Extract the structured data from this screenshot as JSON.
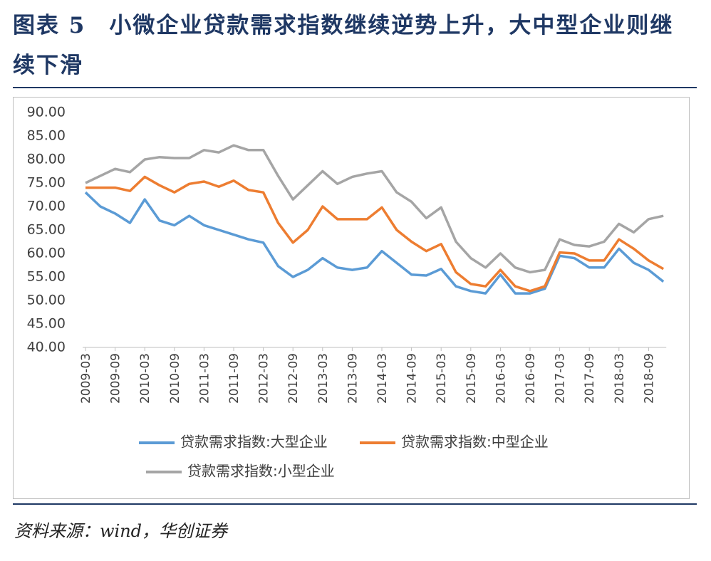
{
  "chart_data": {
    "type": "line",
    "title": "图表 5　小微企业贷款需求指数继续逆势上升，大中型企业则继续下滑",
    "source": "资料来源：wind，华创证券",
    "categories": [
      "2009-03",
      null,
      "2009-09",
      null,
      "2010-03",
      null,
      "2010-09",
      null,
      "2011-03",
      null,
      "2011-09",
      null,
      "2012-03",
      null,
      "2012-09",
      null,
      "2013-03",
      null,
      "2013-09",
      null,
      "2014-03",
      null,
      "2014-09",
      null,
      "2015-03",
      null,
      "2015-09",
      null,
      "2016-03",
      null,
      "2016-09",
      null,
      "2017-03",
      null,
      "2017-09",
      null,
      "2018-03",
      null,
      "2018-09",
      null
    ],
    "series": [
      {
        "name": "贷款需求指数:大型企业",
        "color": "#5b9bd5",
        "values": [
          73,
          70,
          68.5,
          66.5,
          71.5,
          67,
          66,
          68,
          66,
          65,
          64,
          63,
          62.3,
          57.3,
          55,
          56.5,
          59,
          57,
          56.5,
          57,
          60.5,
          58,
          55.5,
          55.3,
          56.7,
          53,
          52,
          51.5,
          55.5,
          51.5,
          51.5,
          52.5,
          59.5,
          59,
          57,
          57,
          61,
          58,
          56.5,
          54
        ]
      },
      {
        "name": "贷款需求指数:中型企业",
        "color": "#ed7d31",
        "values": [
          74,
          74,
          74,
          73.3,
          76.3,
          74.5,
          73,
          74.8,
          75.3,
          74.2,
          75.5,
          73.5,
          73,
          66.5,
          62.3,
          65,
          70,
          67.3,
          67.3,
          67.3,
          69.8,
          65,
          62.5,
          60.5,
          62,
          56,
          53.5,
          53,
          56.5,
          53,
          52,
          53,
          60.2,
          60,
          58.5,
          58.5,
          63,
          61,
          58.5,
          56.7
        ]
      },
      {
        "name": "贷款需求指数:小型企业",
        "color": "#a5a5a5",
        "values": [
          75,
          76.5,
          78,
          77.3,
          80,
          80.5,
          80.3,
          80.3,
          82,
          81.5,
          83,
          82,
          82,
          76.5,
          71.5,
          74.5,
          77.5,
          74.8,
          76.3,
          77,
          77.5,
          73,
          71,
          67.5,
          69.8,
          62.5,
          59,
          57,
          60,
          57,
          56,
          56.5,
          63,
          61.8,
          61.5,
          62.5,
          66.3,
          64.5,
          67.3,
          68
        ]
      }
    ],
    "ylim": [
      40,
      90
    ],
    "yticks": [
      {
        "value": 40,
        "label": "40.00"
      },
      {
        "value": 45,
        "label": "45.00"
      },
      {
        "value": 50,
        "label": "50.00"
      },
      {
        "value": 55,
        "label": "55.00"
      },
      {
        "value": 60,
        "label": "60.00"
      },
      {
        "value": 65,
        "label": "65.00"
      },
      {
        "value": 70,
        "label": "70.00"
      },
      {
        "value": 75,
        "label": "75.00"
      },
      {
        "value": 80,
        "label": "80.00"
      },
      {
        "value": 85,
        "label": "85.00"
      },
      {
        "value": 90,
        "label": "90.00"
      }
    ],
    "grid": false
  }
}
